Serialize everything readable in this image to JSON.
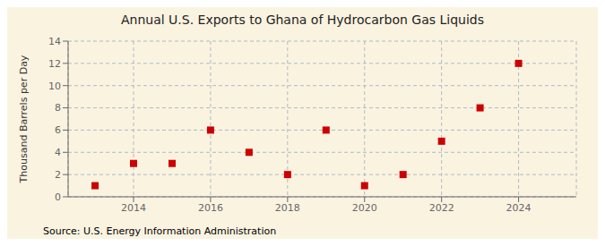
{
  "chart_data": {
    "type": "scatter",
    "title": "Annual U.S. Exports to Ghana of Hydrocarbon Gas Liquids",
    "ylabel": "Thousand Barrels per Day",
    "annotation": "Source: U.S. Energy Information Administration",
    "x": [
      2013,
      2014,
      2015,
      2016,
      2017,
      2018,
      2019,
      2020,
      2021,
      2022,
      2023,
      2024
    ],
    "values": [
      1,
      3,
      3,
      6,
      4,
      2,
      6,
      1,
      2,
      5,
      8,
      12
    ],
    "color": "#cc0000",
    "marker": "square",
    "xlim": [
      2012.3,
      2025.5
    ],
    "ylim": [
      0,
      14
    ],
    "xticks": [
      2014,
      2016,
      2018,
      2020,
      2022,
      2024
    ],
    "yticks": [
      0,
      2,
      4,
      6,
      8,
      10,
      12,
      14
    ],
    "grid": true
  }
}
